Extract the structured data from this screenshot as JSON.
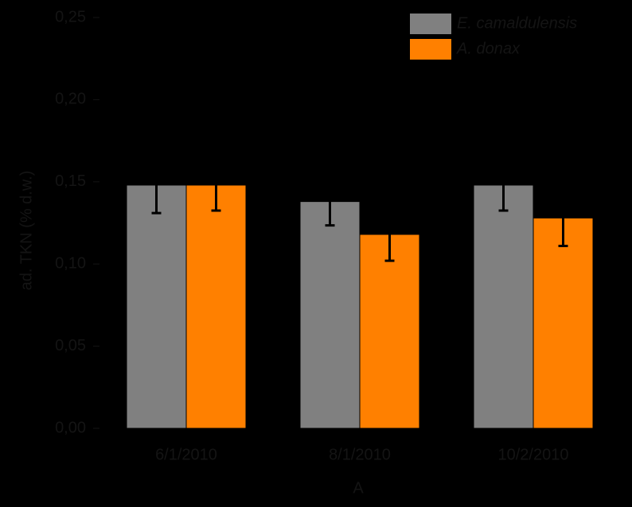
{
  "chart_data": {
    "type": "bar",
    "x_label": "A",
    "y_label": "ad. TKN (% d.w.)",
    "categories": [
      "6/1/2010",
      "8/1/2010",
      "10/2/2010"
    ],
    "series": [
      {
        "name": "E. camaldulensis",
        "color": "#808080",
        "values": [
          0.148,
          0.138,
          0.148
        ],
        "errors": [
          0.017,
          0.0145,
          0.0155
        ]
      },
      {
        "name": "A. donax",
        "color": "#ff8000",
        "values": [
          0.148,
          0.118,
          0.128
        ],
        "errors": [
          0.0155,
          0.016,
          0.017
        ]
      }
    ],
    "ylim": [
      0,
      0.25
    ],
    "yticks": [
      {
        "value": 0,
        "label": "0,00"
      },
      {
        "value": 0.05,
        "label": "0,05"
      },
      {
        "value": 0.1,
        "label": "0,10"
      },
      {
        "value": 0.15,
        "label": "0,15"
      },
      {
        "value": 0.2,
        "label": "0,20"
      },
      {
        "value": 0.25,
        "label": "0,25"
      }
    ],
    "legend": "top-right"
  }
}
